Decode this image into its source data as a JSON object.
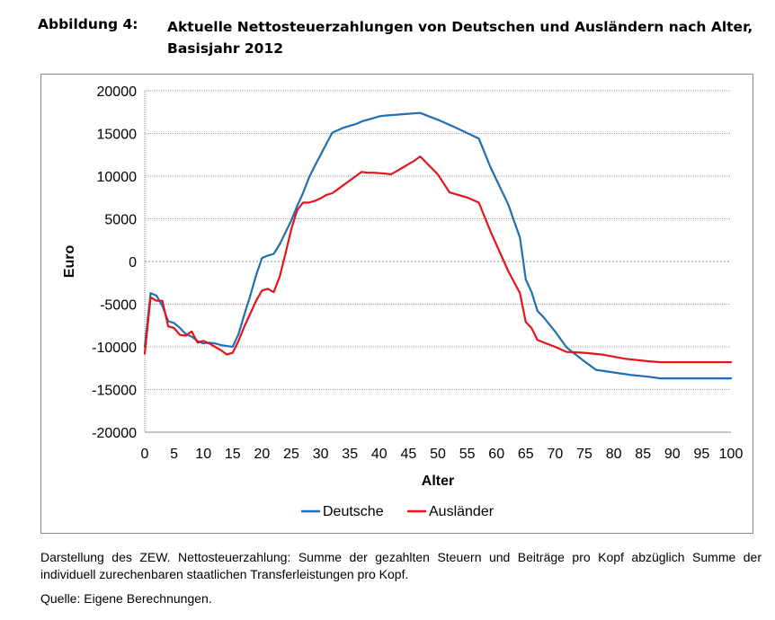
{
  "caption": {
    "label": "Abbildung 4:",
    "title": "Aktuelle Nettosteuerzahlungen von Deutschen und Ausländern nach Alter, Basisjahr 2012"
  },
  "notes": {
    "description": "Darstellung des ZEW. Nettosteuerzahlung: Summe der gezahlten Steuern und Beiträge pro Kopf abzüglich Summe der individuell zurechenbaren staatlichen Transferleistungen pro Kopf.",
    "source": "Quelle: Eigene Berechnungen."
  },
  "chart_data": {
    "type": "line",
    "title": "",
    "xlabel": "Alter",
    "ylabel": "Euro",
    "xlim": [
      0,
      100
    ],
    "ylim": [
      -20000,
      20000
    ],
    "x_ticks": [
      0,
      5,
      10,
      15,
      20,
      25,
      30,
      35,
      40,
      45,
      50,
      55,
      60,
      65,
      70,
      75,
      80,
      85,
      90,
      95,
      100
    ],
    "y_ticks": [
      20000,
      15000,
      10000,
      5000,
      0,
      -5000,
      -10000,
      -15000,
      -20000
    ],
    "grid": "horizontal",
    "legend_position": "bottom",
    "series": [
      {
        "name": "Deutsche",
        "color": "#1f6fb5",
        "points": [
          [
            0,
            -10000
          ],
          [
            1,
            -3700
          ],
          [
            2,
            -4000
          ],
          [
            3,
            -5200
          ],
          [
            4,
            -7000
          ],
          [
            5,
            -7200
          ],
          [
            6,
            -7800
          ],
          [
            7,
            -8500
          ],
          [
            8,
            -8800
          ],
          [
            9,
            -9300
          ],
          [
            10,
            -9600
          ],
          [
            11,
            -9500
          ],
          [
            12,
            -9600
          ],
          [
            13,
            -9800
          ],
          [
            14,
            -9900
          ],
          [
            15,
            -10000
          ],
          [
            16,
            -8500
          ],
          [
            17,
            -6200
          ],
          [
            18,
            -4000
          ],
          [
            19,
            -1600
          ],
          [
            20,
            400
          ],
          [
            21,
            700
          ],
          [
            22,
            900
          ],
          [
            23,
            2000
          ],
          [
            24,
            3400
          ],
          [
            25,
            4800
          ],
          [
            26,
            6500
          ],
          [
            27,
            8000
          ],
          [
            28,
            9800
          ],
          [
            29,
            11200
          ],
          [
            30,
            12500
          ],
          [
            31,
            13800
          ],
          [
            32,
            15100
          ],
          [
            33,
            15400
          ],
          [
            34,
            15700
          ],
          [
            35,
            15900
          ],
          [
            36,
            16100
          ],
          [
            37,
            16400
          ],
          [
            38,
            16600
          ],
          [
            39,
            16800
          ],
          [
            40,
            17000
          ],
          [
            41,
            17100
          ],
          [
            42,
            17150
          ],
          [
            43,
            17200
          ],
          [
            44,
            17250
          ],
          [
            45,
            17300
          ],
          [
            46,
            17350
          ],
          [
            47,
            17400
          ],
          [
            50,
            16600
          ],
          [
            53,
            15700
          ],
          [
            57,
            14400
          ],
          [
            59,
            11000
          ],
          [
            62,
            6700
          ],
          [
            64,
            2800
          ],
          [
            65,
            -2100
          ],
          [
            66,
            -3600
          ],
          [
            67,
            -5800
          ],
          [
            68,
            -6500
          ],
          [
            70,
            -8200
          ],
          [
            72,
            -10100
          ],
          [
            75,
            -11700
          ],
          [
            77,
            -12700
          ],
          [
            80,
            -13000
          ],
          [
            83,
            -13300
          ],
          [
            86,
            -13500
          ],
          [
            88,
            -13700
          ],
          [
            92,
            -13700
          ],
          [
            96,
            -13700
          ],
          [
            100,
            -13700
          ]
        ]
      },
      {
        "name": "Ausländer",
        "color": "#e3151a",
        "points": [
          [
            0,
            -10800
          ],
          [
            1,
            -4200
          ],
          [
            2,
            -4600
          ],
          [
            3,
            -4600
          ],
          [
            4,
            -7600
          ],
          [
            5,
            -7800
          ],
          [
            6,
            -8600
          ],
          [
            7,
            -8700
          ],
          [
            8,
            -8200
          ],
          [
            9,
            -9500
          ],
          [
            10,
            -9300
          ],
          [
            11,
            -9600
          ],
          [
            12,
            -10000
          ],
          [
            13,
            -10400
          ],
          [
            14,
            -10900
          ],
          [
            15,
            -10700
          ],
          [
            16,
            -9300
          ],
          [
            17,
            -7600
          ],
          [
            18,
            -6100
          ],
          [
            19,
            -4600
          ],
          [
            20,
            -3400
          ],
          [
            21,
            -3200
          ],
          [
            22,
            -3600
          ],
          [
            23,
            -1800
          ],
          [
            24,
            900
          ],
          [
            25,
            3800
          ],
          [
            26,
            6000
          ],
          [
            27,
            6900
          ],
          [
            28,
            6900
          ],
          [
            29,
            7100
          ],
          [
            30,
            7400
          ],
          [
            31,
            7800
          ],
          [
            32,
            8000
          ],
          [
            33,
            8500
          ],
          [
            34,
            9000
          ],
          [
            35,
            9500
          ],
          [
            36,
            10000
          ],
          [
            37,
            10500
          ],
          [
            38,
            10400
          ],
          [
            39,
            10400
          ],
          [
            40,
            10350
          ],
          [
            41,
            10300
          ],
          [
            42,
            10200
          ],
          [
            43,
            10600
          ],
          [
            44,
            11000
          ],
          [
            45,
            11400
          ],
          [
            46,
            11800
          ],
          [
            47,
            12300
          ],
          [
            50,
            10200
          ],
          [
            52,
            8100
          ],
          [
            55,
            7500
          ],
          [
            57,
            6900
          ],
          [
            59,
            3500
          ],
          [
            62,
            -1100
          ],
          [
            64,
            -3700
          ],
          [
            65,
            -7100
          ],
          [
            66,
            -7800
          ],
          [
            67,
            -9200
          ],
          [
            70,
            -10000
          ],
          [
            72,
            -10600
          ],
          [
            75,
            -10700
          ],
          [
            78,
            -10900
          ],
          [
            82,
            -11400
          ],
          [
            86,
            -11700
          ],
          [
            88,
            -11800
          ],
          [
            92,
            -11800
          ],
          [
            96,
            -11800
          ],
          [
            100,
            -11800
          ]
        ]
      }
    ]
  }
}
